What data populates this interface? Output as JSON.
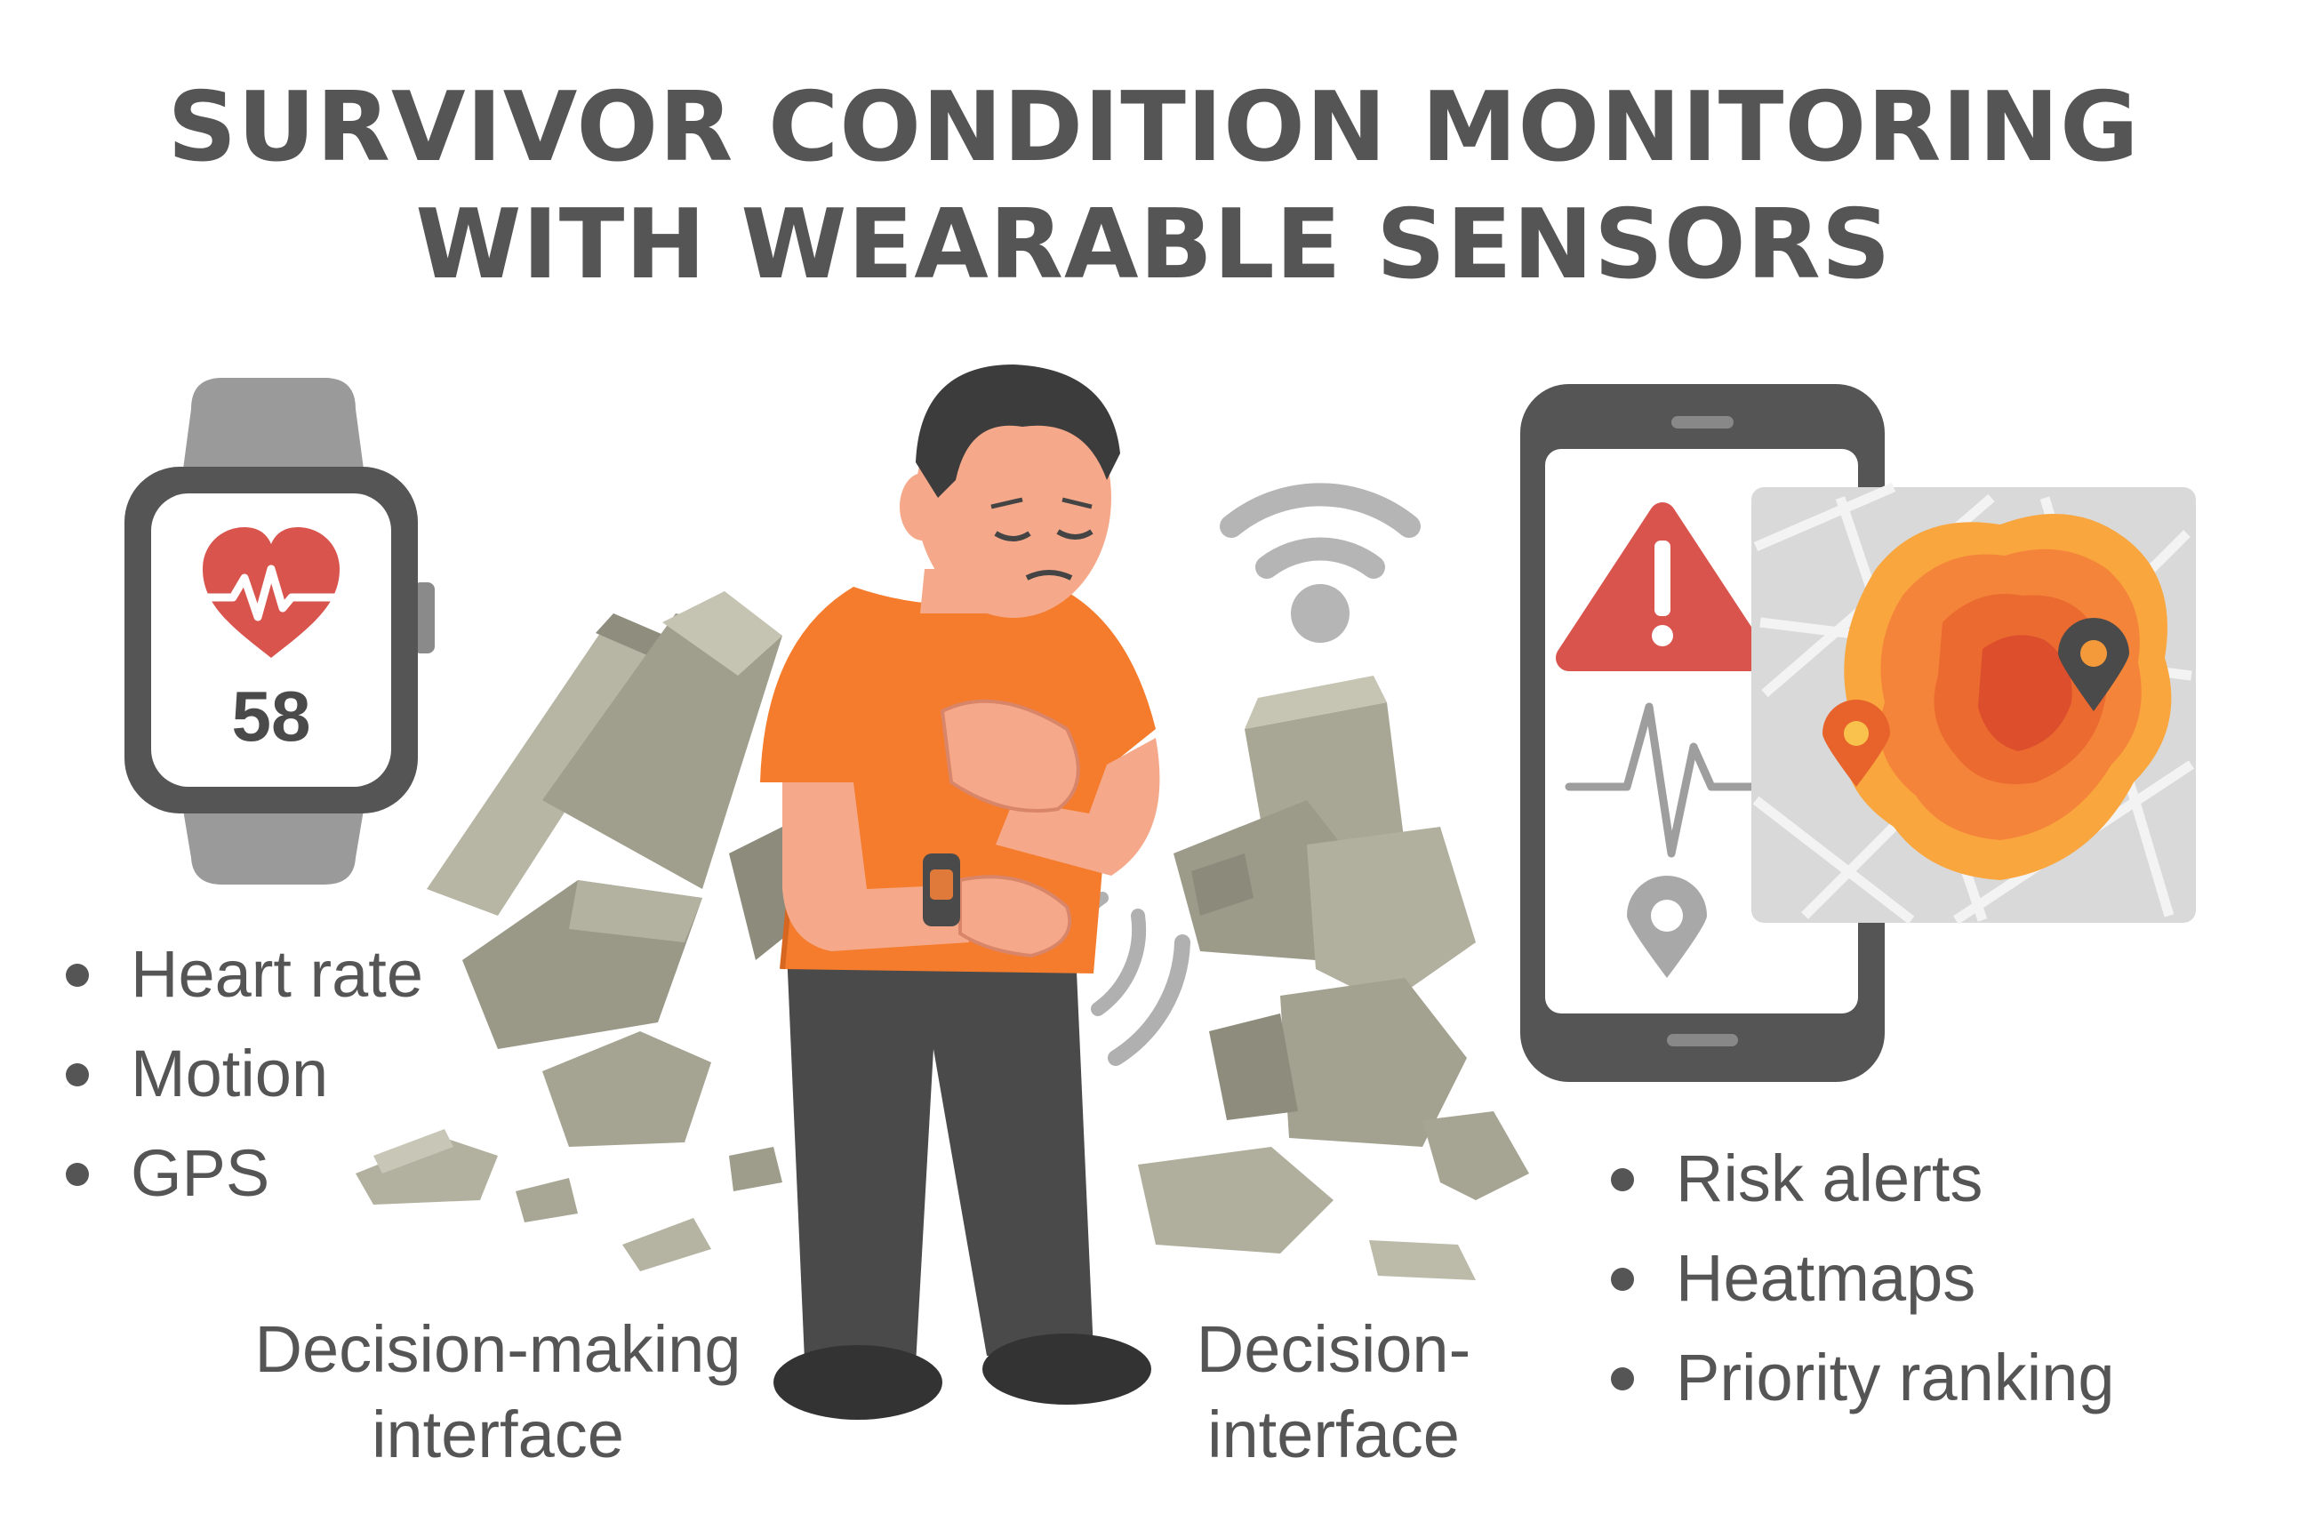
{
  "title": {
    "line1": "SURVIVOR CONDITION MONITORING",
    "line2": "WITH WEARABLE SENSORS"
  },
  "watch": {
    "heart_rate_value": "58",
    "icon": "heart-pulse-icon"
  },
  "sensor_list": [
    "Heart rate",
    "Motion",
    "GPS"
  ],
  "output_list": [
    "Risk alerts",
    "Heatmaps",
    "Priority ranking"
  ],
  "captions": {
    "left": [
      "Decision-making",
      "interface"
    ],
    "right": [
      "Decision-",
      "interface"
    ]
  },
  "phone": {
    "icons": [
      "warning-icon",
      "ecg-waveform-icon",
      "location-pin-icon"
    ]
  },
  "colors": {
    "text": "#555555",
    "alert_red": "#d9544d",
    "shirt_orange": "#f47c2c",
    "heat_orange": "#f59a3a",
    "rubble": "#a8a796",
    "device_gray": "#555555"
  }
}
